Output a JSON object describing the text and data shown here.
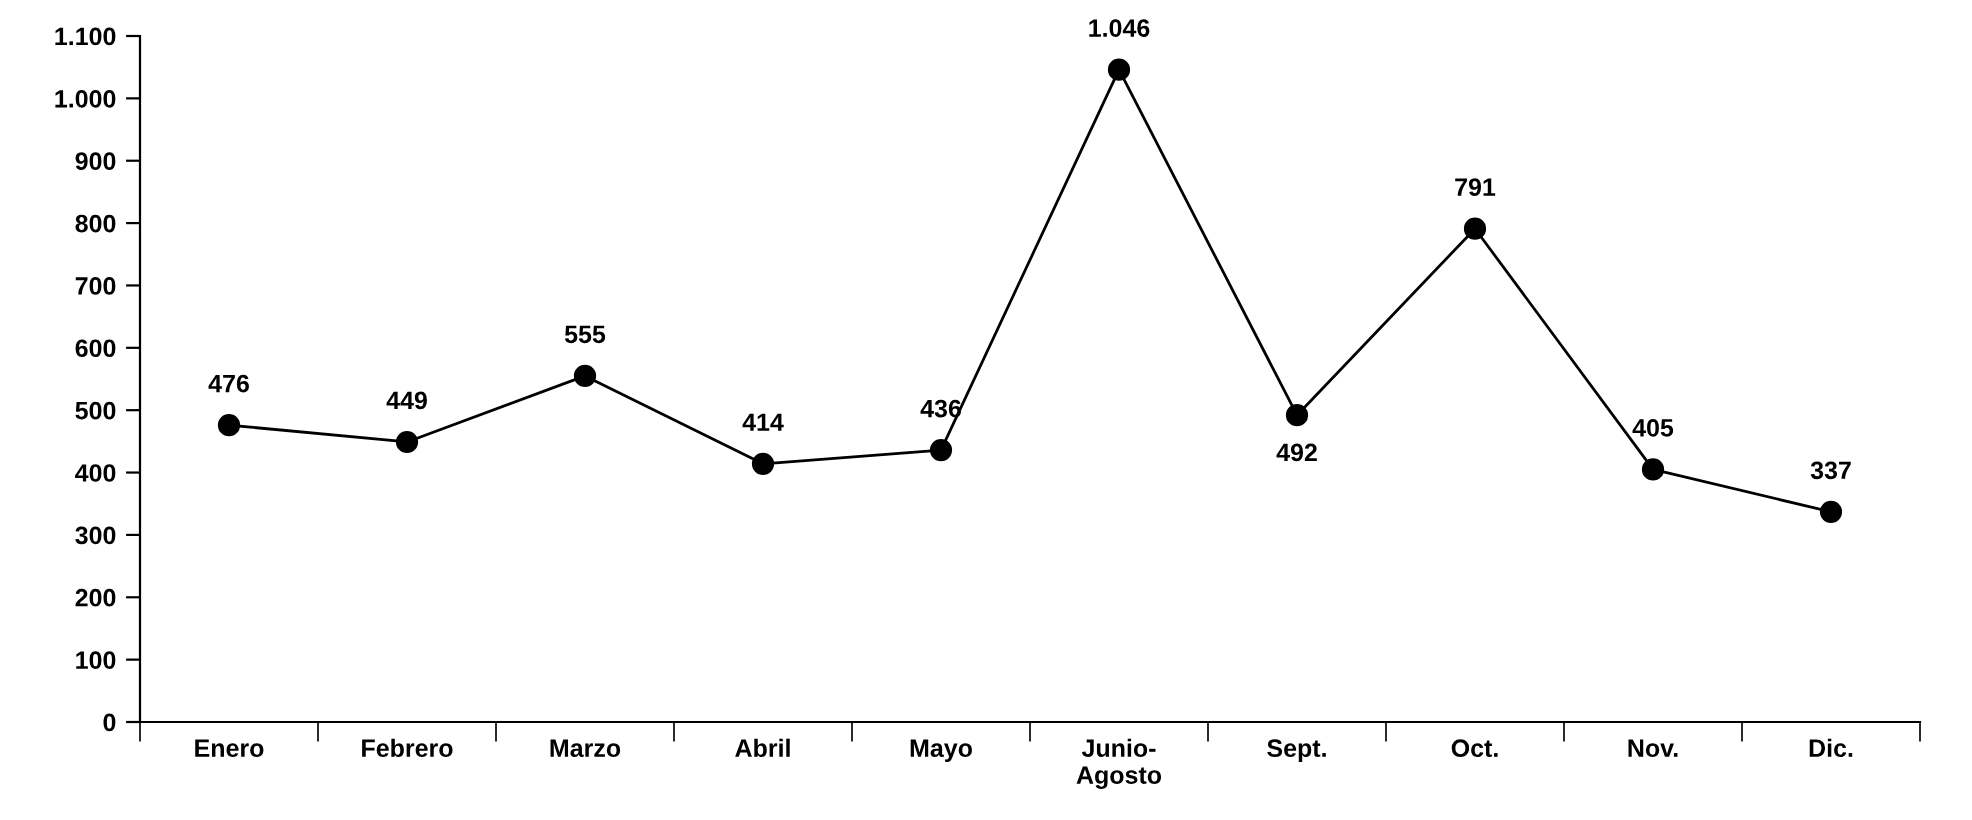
{
  "chart_data": {
    "type": "line",
    "categories": [
      "Enero",
      "Febrero",
      "Marzo",
      "Abril",
      "Mayo",
      "Junio-\nAgosto",
      "Sept.",
      "Oct.",
      "Nov.",
      "Dic."
    ],
    "series": [
      {
        "color": "#000000",
        "values": [
          476,
          449,
          555,
          414,
          436,
          1046,
          492,
          791,
          405,
          337
        ],
        "value_labels": [
          "476",
          "449",
          "555",
          "414",
          "436",
          "1.046",
          "492",
          "791",
          "405",
          "337"
        ]
      }
    ],
    "ylim": [
      0,
      1100
    ],
    "yticks": [
      0,
      100,
      200,
      300,
      400,
      500,
      600,
      700,
      800,
      900,
      {
        "value": 1000,
        "label": "1.000"
      },
      {
        "value": 1100,
        "label": "1.100"
      }
    ],
    "marker": "circle",
    "line_style": "solid",
    "grid": false,
    "legend": false
  }
}
